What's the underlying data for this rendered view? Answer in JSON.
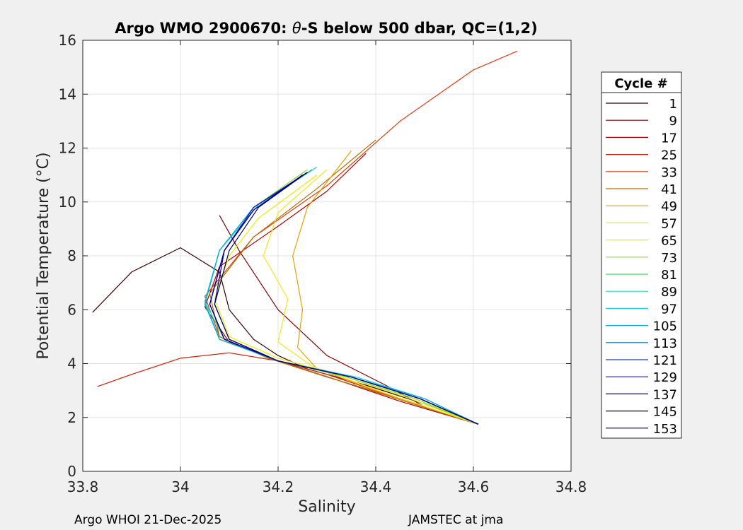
{
  "chart_data": {
    "type": "line",
    "title_prefix": "Argo WMO 2900670: ",
    "title_theta": "θ",
    "title_suffix": "-S below 500 dbar,  QC=(1,2)",
    "xlabel": "Salinity",
    "ylabel": "Potential Temperature (°C)",
    "xlim": [
      33.8,
      34.8
    ],
    "ylim": [
      0,
      16
    ],
    "xticks": [
      33.8,
      34.0,
      34.2,
      34.4,
      34.6,
      34.8
    ],
    "xtick_labels": [
      "33.8",
      "34",
      "34.2",
      "34.4",
      "34.6",
      "34.8"
    ],
    "yticks": [
      0,
      2,
      4,
      6,
      8,
      10,
      12,
      14,
      16
    ],
    "ytick_labels": [
      "0",
      "2",
      "4",
      "6",
      "8",
      "10",
      "12",
      "14",
      "16"
    ],
    "grid": true,
    "legend": {
      "title": "Cycle #",
      "placement": "right-outside",
      "entries": [
        "1",
        "9",
        "17",
        "25",
        "33",
        "41",
        "49",
        "57",
        "65",
        "73",
        "81",
        "89",
        "97",
        "105",
        "113",
        "121",
        "129",
        "137",
        "145",
        "153"
      ],
      "colors": [
        "#3a0000",
        "#800000",
        "#b00000",
        "#d21a00",
        "#e23a10",
        "#b07000",
        "#e3a000",
        "#f5e51a",
        "#e5f000",
        "#80e030",
        "#40e060",
        "#20e0b0",
        "#10d0e0",
        "#00a8e0",
        "#0070a0",
        "#1040c0",
        "#1010e0",
        "#0000a0",
        "#000060",
        "#000080"
      ]
    },
    "series": [
      {
        "name": "1",
        "salinity": [
          33.82,
          33.9,
          34.0,
          34.08,
          34.1,
          34.15,
          34.2,
          34.26,
          34.38,
          34.5,
          34.61
        ],
        "theta": [
          5.9,
          7.4,
          8.3,
          7.4,
          6.0,
          4.9,
          4.3,
          3.8,
          3.2,
          2.5,
          1.75
        ]
      },
      {
        "name": "9",
        "salinity": [
          34.08,
          34.12,
          34.2,
          34.3,
          34.42,
          34.5,
          34.61
        ],
        "theta": [
          9.5,
          8.2,
          6.0,
          4.3,
          3.2,
          2.4,
          1.75
        ]
      },
      {
        "name": "17",
        "salinity": [
          34.38,
          34.3,
          34.2,
          34.08,
          34.05,
          34.1,
          34.2,
          34.32,
          34.45,
          34.61
        ],
        "theta": [
          11.8,
          10.4,
          9.1,
          7.6,
          6.1,
          4.8,
          4.1,
          3.4,
          2.6,
          1.75
        ]
      },
      {
        "name": "25",
        "salinity": [
          33.83,
          33.9,
          34.0,
          34.1,
          34.2,
          34.3,
          34.45,
          34.61
        ],
        "theta": [
          3.15,
          3.6,
          4.2,
          4.4,
          4.1,
          3.6,
          2.7,
          1.75
        ]
      },
      {
        "name": "33",
        "salinity": [
          34.69,
          34.6,
          34.45,
          34.3,
          34.15,
          34.05,
          34.08,
          34.18,
          34.3,
          34.45,
          34.61
        ],
        "theta": [
          15.6,
          14.9,
          13.0,
          10.6,
          8.7,
          6.5,
          5.0,
          4.2,
          3.5,
          2.7,
          1.75
        ]
      },
      {
        "name": "41",
        "salinity": [
          34.4,
          34.28,
          34.15,
          34.06,
          34.08,
          34.18,
          34.32,
          34.46,
          34.61
        ],
        "theta": [
          12.3,
          10.5,
          8.7,
          6.6,
          5.0,
          4.2,
          3.4,
          2.6,
          1.75
        ]
      },
      {
        "name": "49",
        "salinity": [
          34.35,
          34.26,
          34.23,
          34.25,
          34.24,
          34.28,
          34.4,
          34.61
        ],
        "theta": [
          11.9,
          9.8,
          8.0,
          6.0,
          4.6,
          3.8,
          3.0,
          1.75
        ]
      },
      {
        "name": "57",
        "salinity": [
          34.3,
          34.2,
          34.17,
          34.22,
          34.2,
          34.27,
          34.42,
          34.61
        ],
        "theta": [
          11.2,
          9.6,
          8.0,
          6.4,
          4.8,
          3.9,
          2.9,
          1.75
        ]
      },
      {
        "name": "65",
        "salinity": [
          34.28,
          34.16,
          34.1,
          34.07,
          34.1,
          34.2,
          34.34,
          34.47,
          34.61
        ],
        "theta": [
          11.0,
          9.4,
          8.0,
          6.4,
          5.0,
          4.2,
          3.5,
          2.7,
          1.75
        ]
      },
      {
        "name": "73",
        "salinity": [
          34.26,
          34.15,
          34.08,
          34.05,
          34.08,
          34.2,
          34.34,
          34.48,
          34.61
        ],
        "theta": [
          11.2,
          9.8,
          8.2,
          6.3,
          4.9,
          4.1,
          3.5,
          2.7,
          1.75
        ]
      },
      {
        "name": "81",
        "salinity": [
          34.27,
          34.15,
          34.08,
          34.05,
          34.08,
          34.2,
          34.35,
          34.49,
          34.61
        ],
        "theta": [
          11.2,
          9.8,
          8.2,
          6.3,
          4.9,
          4.1,
          3.5,
          2.7,
          1.75
        ]
      },
      {
        "name": "89",
        "salinity": [
          34.28,
          34.16,
          34.08,
          34.05,
          34.09,
          34.2,
          34.35,
          34.49,
          34.61
        ],
        "theta": [
          11.3,
          9.9,
          8.2,
          6.3,
          4.9,
          4.1,
          3.5,
          2.7,
          1.75
        ]
      },
      {
        "name": "97",
        "salinity": [
          34.26,
          34.15,
          34.08,
          34.05,
          34.08,
          34.2,
          34.36,
          34.5,
          34.61
        ],
        "theta": [
          11.1,
          9.8,
          8.2,
          6.3,
          4.9,
          4.1,
          3.5,
          2.7,
          1.75
        ]
      },
      {
        "name": "105",
        "salinity": [
          34.27,
          34.15,
          34.08,
          34.05,
          34.08,
          34.2,
          34.35,
          34.5,
          34.61
        ],
        "theta": [
          11.2,
          9.8,
          8.2,
          6.2,
          4.9,
          4.1,
          3.5,
          2.7,
          1.75
        ]
      },
      {
        "name": "113",
        "salinity": [
          34.26,
          34.15,
          34.09,
          34.06,
          34.09,
          34.2,
          34.35,
          34.49,
          34.61
        ],
        "theta": [
          11.1,
          9.8,
          8.2,
          6.2,
          4.9,
          4.1,
          3.5,
          2.7,
          1.75
        ]
      },
      {
        "name": "121",
        "salinity": [
          34.25,
          34.15,
          34.09,
          34.06,
          34.09,
          34.2,
          34.35,
          34.49,
          34.61
        ],
        "theta": [
          11.0,
          9.7,
          8.2,
          6.2,
          4.9,
          4.1,
          3.5,
          2.7,
          1.75
        ]
      },
      {
        "name": "129",
        "salinity": [
          34.26,
          34.15,
          34.09,
          34.06,
          34.09,
          34.2,
          34.35,
          34.49,
          34.61
        ],
        "theta": [
          11.1,
          9.8,
          8.2,
          6.2,
          4.9,
          4.1,
          3.5,
          2.7,
          1.75
        ]
      },
      {
        "name": "137",
        "salinity": [
          34.25,
          34.15,
          34.09,
          34.07,
          34.1,
          34.2,
          34.35,
          34.49,
          34.61
        ],
        "theta": [
          11.0,
          9.7,
          8.2,
          6.2,
          4.9,
          4.1,
          3.5,
          2.7,
          1.75
        ]
      },
      {
        "name": "145",
        "salinity": [
          34.26,
          34.16,
          34.1,
          34.07,
          34.1,
          34.2,
          34.35,
          34.49,
          34.61
        ],
        "theta": [
          11.1,
          9.8,
          8.2,
          6.2,
          4.9,
          4.1,
          3.5,
          2.7,
          1.75
        ]
      },
      {
        "name": "153",
        "salinity": [
          34.25,
          34.15,
          34.09,
          34.06,
          34.09,
          34.2,
          34.35,
          34.49,
          34.61
        ],
        "theta": [
          11.0,
          9.7,
          8.2,
          6.2,
          4.9,
          4.1,
          3.5,
          2.7,
          1.75
        ]
      }
    ]
  },
  "footer": {
    "left": "Argo WHOI 21-Dec-2025",
    "right": "JAMSTEC at jma"
  }
}
